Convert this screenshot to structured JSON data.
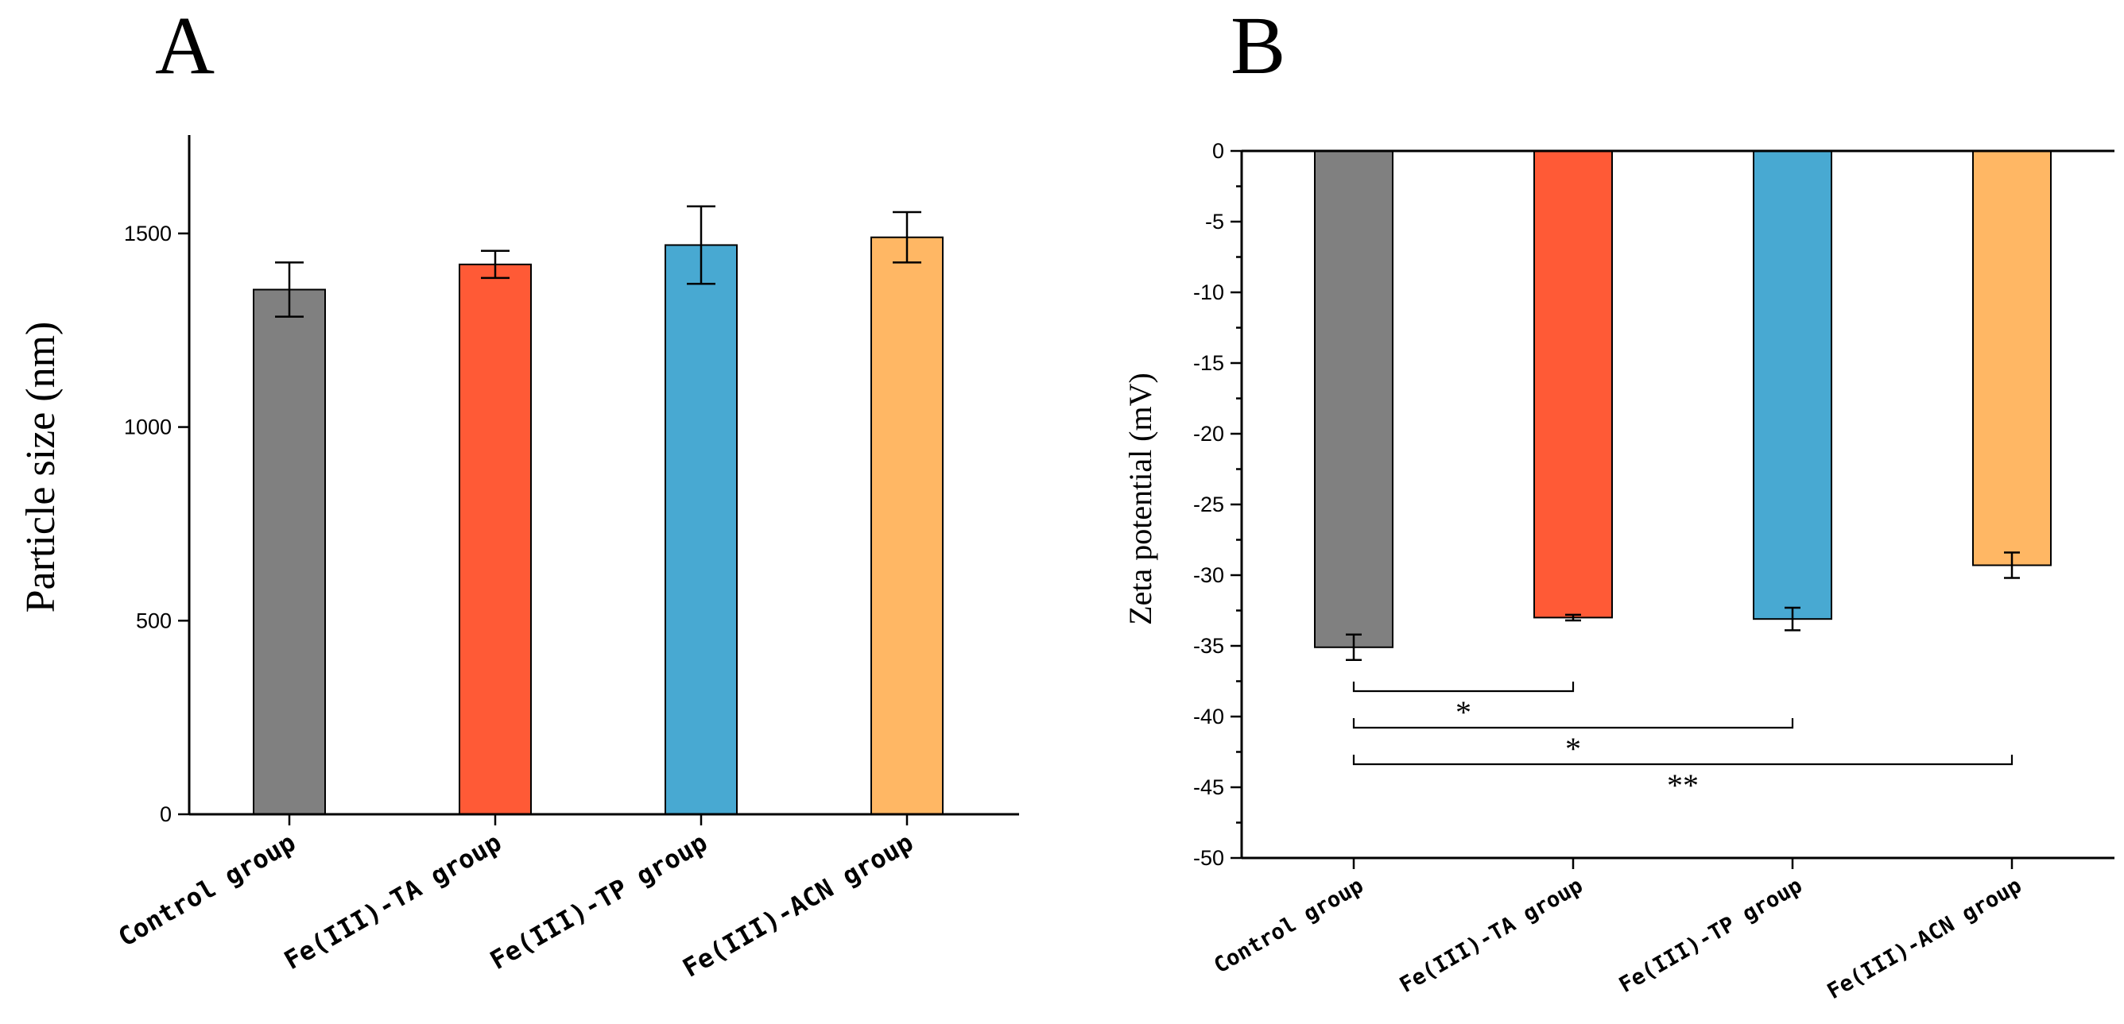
{
  "chart_data": [
    {
      "type": "bar",
      "panel": "A",
      "title": "",
      "xlabel": "",
      "ylabel": "Particle size (nm)",
      "ylim": [
        0,
        1750
      ],
      "yticks": [
        0,
        500,
        1000,
        1500
      ],
      "categories": [
        "Control group",
        "Fe(III)-TA group",
        "Fe(III)-TP group",
        "Fe(III)-ACN group"
      ],
      "values": [
        1355,
        1420,
        1470,
        1490
      ],
      "errors": [
        70,
        35,
        100,
        65
      ],
      "colors": [
        "#808080",
        "#ff5a36",
        "#48a9d2",
        "#ffb764"
      ],
      "grid": false
    },
    {
      "type": "bar",
      "panel": "B",
      "title": "",
      "xlabel": "",
      "ylabel": "Zeta potential (mV)",
      "ylim": [
        -50,
        0
      ],
      "yticks": [
        0,
        -5,
        -10,
        -15,
        -20,
        -25,
        -30,
        -35,
        -40,
        -45,
        -50
      ],
      "categories": [
        "Control group",
        "Fe(III)-TA group",
        "Fe(III)-TP group",
        "Fe(III)-ACN group"
      ],
      "values": [
        -35.1,
        -33.0,
        -33.1,
        -29.3
      ],
      "errors": [
        0.9,
        0.2,
        0.8,
        0.9
      ],
      "colors": [
        "#808080",
        "#ff5a36",
        "#48a9d2",
        "#ffb764"
      ],
      "grid": false,
      "significance": [
        {
          "from": 0,
          "to": 1,
          "label": "*"
        },
        {
          "from": 0,
          "to": 2,
          "label": "*"
        },
        {
          "from": 0,
          "to": 3,
          "label": "**"
        }
      ]
    }
  ]
}
